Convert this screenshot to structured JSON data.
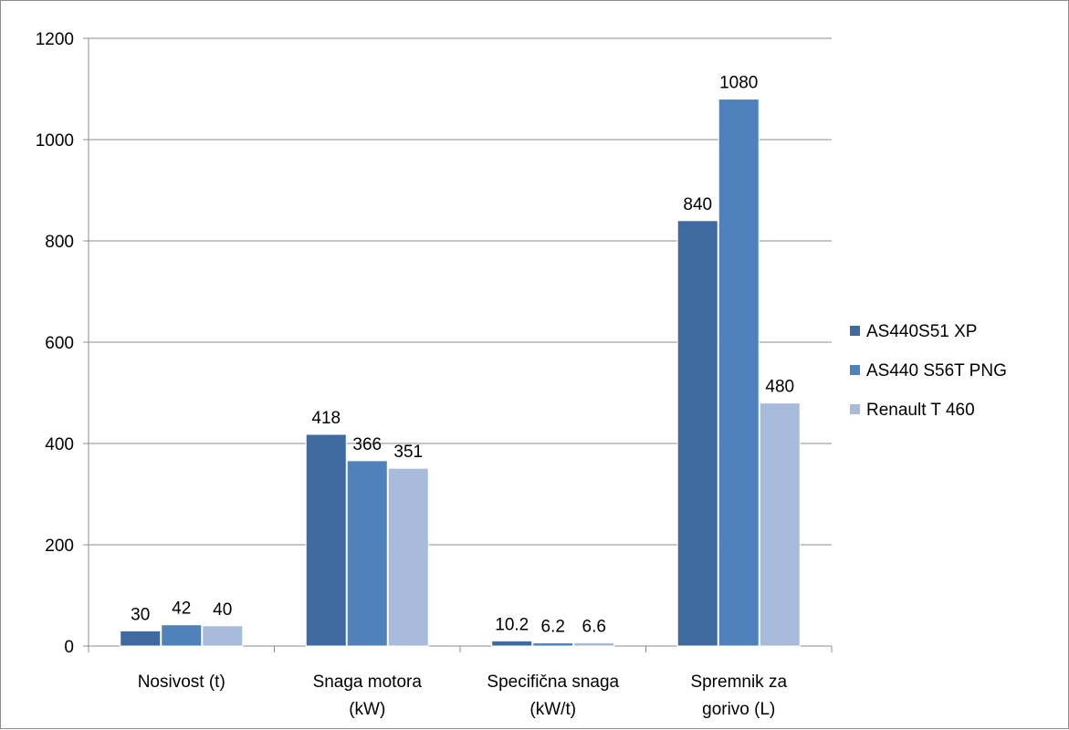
{
  "chart_data": {
    "type": "bar",
    "title": "",
    "xlabel": "",
    "ylabel": "",
    "ylim": [
      0,
      1200
    ],
    "yticks": [
      0,
      200,
      400,
      600,
      800,
      1000,
      1200
    ],
    "grid": true,
    "legend_position": "right",
    "categories": [
      [
        "Nosivost (t)"
      ],
      [
        "Snaga motora",
        "(kW)"
      ],
      [
        "Specifična snaga",
        "(kW/t)"
      ],
      [
        "Spremnik za",
        "gorivo (L)"
      ]
    ],
    "series": [
      {
        "name": "AS440S51 XP",
        "color": "#3e6aa0",
        "values": [
          30,
          418,
          10.2,
          840
        ],
        "labels": [
          "30",
          "418",
          "10.2",
          "840"
        ]
      },
      {
        "name": "AS440 S56T PNG",
        "color": "#4f81bd",
        "values": [
          42,
          366,
          6.2,
          1080
        ],
        "labels": [
          "42",
          "366",
          "6.2",
          "1080"
        ]
      },
      {
        "name": "Renault T 460",
        "color": "#a9bbda",
        "values": [
          40,
          351,
          6.6,
          480
        ],
        "labels": [
          "40",
          "351",
          "6.6",
          "480"
        ]
      }
    ]
  }
}
